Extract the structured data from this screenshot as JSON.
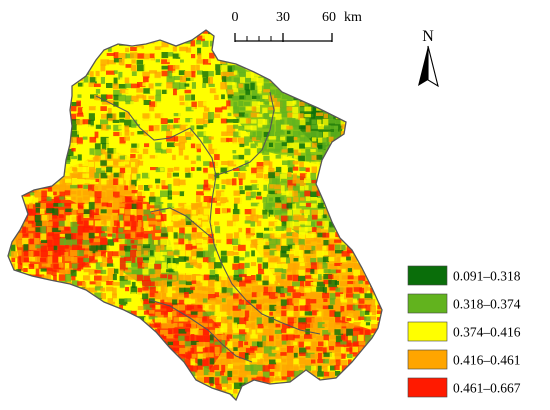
{
  "scale_bar": {
    "ticks": [
      "0",
      "30",
      "60"
    ],
    "unit": "km"
  },
  "north_arrow": {
    "label": "N",
    "icon": "north-arrow-icon"
  },
  "legend": {
    "items": [
      {
        "label": "0.091–0.318",
        "color": "#0a6e0a"
      },
      {
        "label": "0.318–0.374",
        "color": "#62b31e"
      },
      {
        "label": "0.374–0.416",
        "color": "#ffff00"
      },
      {
        "label": "0.416–0.461",
        "color": "#ffa500"
      },
      {
        "label": "0.461–0.667",
        "color": "#ff1a00"
      }
    ]
  },
  "map": {
    "boundary_color": "#555555",
    "class_colors": [
      "#0a6e0a",
      "#62b31e",
      "#ffff00",
      "#ffa500",
      "#ff1a00"
    ]
  }
}
